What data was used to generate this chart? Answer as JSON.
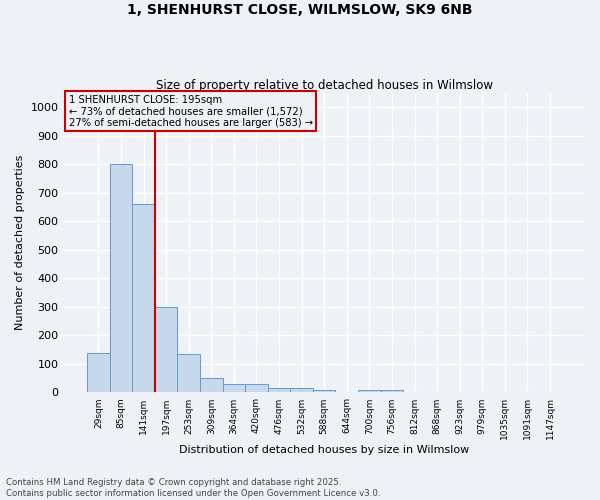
{
  "title_line1": "1, SHENHURST CLOSE, WILMSLOW, SK9 6NB",
  "title_line2": "Size of property relative to detached houses in Wilmslow",
  "xlabel": "Distribution of detached houses by size in Wilmslow",
  "ylabel": "Number of detached properties",
  "bin_labels": [
    "29sqm",
    "85sqm",
    "141sqm",
    "197sqm",
    "253sqm",
    "309sqm",
    "364sqm",
    "420sqm",
    "476sqm",
    "532sqm",
    "588sqm",
    "644sqm",
    "700sqm",
    "756sqm",
    "812sqm",
    "868sqm",
    "923sqm",
    "979sqm",
    "1035sqm",
    "1091sqm",
    "1147sqm"
  ],
  "bar_values": [
    140,
    800,
    660,
    300,
    135,
    50,
    28,
    28,
    15,
    15,
    10,
    0,
    10,
    8,
    0,
    0,
    0,
    0,
    0,
    0,
    0
  ],
  "bar_color": "#c8d8ec",
  "bar_edgecolor": "#6699cc",
  "vline_x": 2.5,
  "vline_color": "#cc0000",
  "annotation_title": "1 SHENHURST CLOSE: 195sqm",
  "annotation_line1": "← 73% of detached houses are smaller (1,572)",
  "annotation_line2": "27% of semi-detached houses are larger (583) →",
  "annotation_box_edgecolor": "#cc0000",
  "ylim": [
    0,
    1050
  ],
  "yticks": [
    0,
    100,
    200,
    300,
    400,
    500,
    600,
    700,
    800,
    900,
    1000
  ],
  "background_color": "#eef2f7",
  "grid_color": "#ffffff",
  "footer_line1": "Contains HM Land Registry data © Crown copyright and database right 2025.",
  "footer_line2": "Contains public sector information licensed under the Open Government Licence v3.0."
}
